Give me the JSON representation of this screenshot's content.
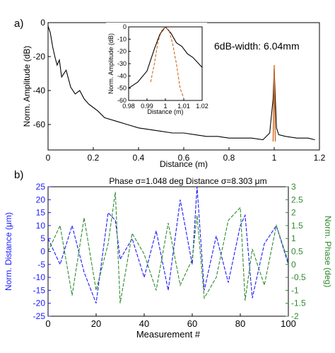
{
  "chart_data": [
    {
      "type": "line",
      "panel_label": "a)",
      "xlabel": "Distance (m)",
      "ylabel": "Norm. Amplitude (dB)",
      "xlim": [
        0,
        1.2
      ],
      "ylim": [
        -75,
        0
      ],
      "xticks": [
        0,
        0.2,
        0.4,
        0.6,
        0.8,
        1,
        1.2
      ],
      "xtick_labels": [
        "0",
        "0.2",
        "0.4",
        "0.6",
        "0.8",
        "1",
        "1.2"
      ],
      "yticks": [
        0,
        -20,
        -40,
        -60
      ],
      "ytick_labels": [
        "0",
        "-20",
        "-40",
        "-60"
      ],
      "annotation": "6dB-width: 6.04mm",
      "series": [
        {
          "color": "#000000",
          "x": [
            0.0,
            0.01,
            0.02,
            0.03,
            0.04,
            0.05,
            0.06,
            0.08,
            0.1,
            0.12,
            0.14,
            0.16,
            0.18,
            0.2,
            0.22,
            0.25,
            0.3,
            0.35,
            0.4,
            0.45,
            0.5,
            0.55,
            0.6,
            0.65,
            0.7,
            0.75,
            0.8,
            0.85,
            0.9,
            0.95,
            0.98,
            0.995,
            1.0,
            1.005,
            1.01,
            1.02,
            1.05,
            1.1,
            1.15,
            1.18
          ],
          "y": [
            -2,
            -6,
            -14,
            -20,
            -25,
            -22,
            -32,
            -28,
            -38,
            -42,
            -40,
            -45,
            -48,
            -50,
            -52,
            -56,
            -58,
            -60,
            -62,
            -63,
            -64,
            -65,
            -65,
            -66,
            -67,
            -67,
            -68,
            -68,
            -68,
            -69,
            -65,
            -45,
            -27,
            -45,
            -62,
            -66,
            -67,
            -68,
            -68,
            -69
          ]
        },
        {
          "color": "#d2691e",
          "x": [
            0.995,
            0.998,
            1.0,
            1.002,
            1.005
          ],
          "y": [
            -70,
            -45,
            -25,
            -45,
            -70
          ]
        }
      ]
    },
    {
      "type": "line",
      "panel_label": "inset",
      "xlabel": "Distance (m)",
      "ylabel": "Norm. Amplitude (dB)",
      "xlim": [
        0.98,
        1.02
      ],
      "ylim": [
        -60,
        0
      ],
      "xticks": [
        0.98,
        0.99,
        1,
        1.01,
        1.02
      ],
      "xtick_labels": [
        "0.98",
        "0.99",
        "1",
        "1.01",
        "1.02"
      ],
      "yticks": [
        0,
        -10,
        -20,
        -30,
        -40,
        -50,
        -60
      ],
      "ytick_labels": [
        "0",
        "-10",
        "-20",
        "-30",
        "-40",
        "-50",
        "-60"
      ],
      "series": [
        {
          "color": "#000000",
          "x": [
            0.98,
            0.985,
            0.99,
            0.994,
            0.997,
            1.0,
            1.003,
            1.006,
            1.009,
            1.012,
            1.015,
            1.02
          ],
          "y": [
            -50,
            -45,
            -36,
            -18,
            -6,
            0,
            -5,
            -13,
            -16,
            -22,
            -25,
            -33
          ]
        },
        {
          "color": "#d2691e",
          "x": [
            0.992,
            0.994,
            0.996,
            0.998,
            1.0,
            1.002,
            1.004,
            1.006,
            1.008,
            1.01
          ],
          "y": [
            -45,
            -30,
            -12,
            -3,
            0,
            -3,
            -14,
            -30,
            -50,
            -58
          ]
        }
      ]
    },
    {
      "type": "line",
      "panel_label": "b)",
      "title": "Phase σ=1.048 deg  Distance σ=8.303 μm",
      "xlabel": "Measurement #",
      "ylabel_left": "Norm. Distance (μm)",
      "ylabel_right": "Norm. Phase (deg)",
      "xlim": [
        0,
        100
      ],
      "ylim_left": [
        -25,
        25
      ],
      "ylim_right": [
        -2,
        3
      ],
      "xticks": [
        0,
        20,
        40,
        60,
        80,
        100
      ],
      "xtick_labels": [
        "0",
        "20",
        "40",
        "60",
        "80",
        "100"
      ],
      "yticks_left": [
        25,
        20,
        15,
        10,
        5,
        0,
        -5,
        -10,
        -15,
        -20,
        -25
      ],
      "ytick_labels_left": [
        "25",
        "20",
        "15",
        "10",
        "5",
        "0",
        "-5",
        "-10",
        "-15",
        "-20",
        "-25"
      ],
      "yticks_right": [
        3,
        2.5,
        2,
        1.5,
        1,
        0.5,
        0,
        -0.5,
        -1,
        -1.5,
        -2
      ],
      "ytick_labels_right": [
        "3",
        "2.5",
        "2",
        "1.5",
        "1",
        "0.5",
        "0",
        "-0.5",
        "-1",
        "-1.5",
        "-2"
      ],
      "series": [
        {
          "axis": "left",
          "color": "#1a1aff",
          "x": [
            0,
            5,
            10,
            15,
            20,
            25,
            28,
            30,
            35,
            40,
            45,
            50,
            55,
            60,
            62,
            65,
            70,
            75,
            80,
            82,
            85,
            90,
            95,
            100
          ],
          "y": [
            5,
            -5,
            10,
            -8,
            -20,
            15,
            12,
            -3,
            5,
            -10,
            8,
            -15,
            20,
            -5,
            25,
            -15,
            6,
            -12,
            10,
            14,
            -18,
            3,
            10,
            -5
          ]
        },
        {
          "axis": "right",
          "color": "#2e8b2e",
          "x": [
            0,
            5,
            10,
            15,
            20,
            25,
            28,
            30,
            35,
            40,
            45,
            50,
            55,
            60,
            62,
            65,
            70,
            75,
            80,
            82,
            85,
            90,
            95,
            100
          ],
          "y": [
            0.5,
            1.5,
            -1.2,
            1.8,
            -1,
            0.8,
            2.8,
            -1.5,
            1.2,
            0.4,
            -1,
            1.6,
            -0.8,
            0.2,
            1.9,
            -1.3,
            -0.5,
            1.7,
            2.2,
            -1.4,
            0.6,
            -0.8,
            1.5,
            0.1
          ]
        }
      ]
    }
  ]
}
